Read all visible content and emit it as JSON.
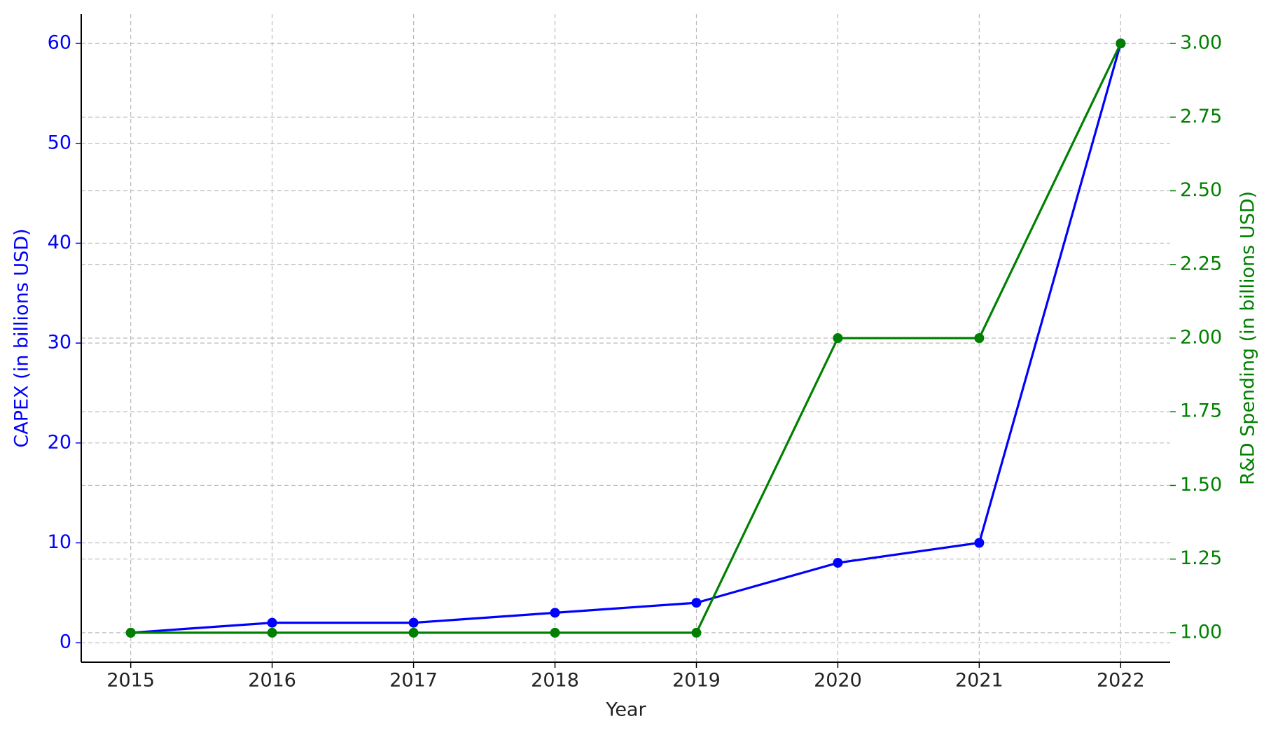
{
  "chart_data": {
    "type": "line",
    "xlabel": "Year",
    "ylabel": "CAPEX (in billions USD)",
    "y2label": "R&D Spending (in billions USD)",
    "x": [
      2015,
      2016,
      2017,
      2018,
      2019,
      2020,
      2021,
      2022
    ],
    "series": [
      {
        "color": "#0000ff",
        "values": [
          1,
          2,
          2,
          3,
          4,
          8,
          10,
          60
        ],
        "axis": "y"
      },
      {
        "color": "#008000",
        "values": [
          1,
          1,
          1,
          1,
          1,
          2,
          2,
          3
        ],
        "axis": "y2"
      }
    ],
    "xlim": [
      2014.65,
      2022.35
    ],
    "xticks": [
      2015,
      2016,
      2017,
      2018,
      2019,
      2020,
      2021,
      2022
    ],
    "ylim": [
      -1.95,
      62.95
    ],
    "yticks": [
      0,
      10,
      20,
      30,
      40,
      50,
      60
    ],
    "y2lim": [
      0.9,
      3.1
    ],
    "y2ticks": [
      {
        "value": 1,
        "label": "1.00"
      },
      {
        "value": 1.25,
        "label": "1.25"
      },
      {
        "value": 1.5,
        "label": "1.50"
      },
      {
        "value": 1.75,
        "label": "1.75"
      },
      {
        "value": 2,
        "label": "2.00"
      },
      {
        "value": 2.25,
        "label": "2.25"
      },
      {
        "value": 2.5,
        "label": "2.50"
      },
      {
        "value": 2.75,
        "label": "2.75"
      },
      {
        "value": 3,
        "label": "3.00"
      }
    ],
    "grid": true
  }
}
